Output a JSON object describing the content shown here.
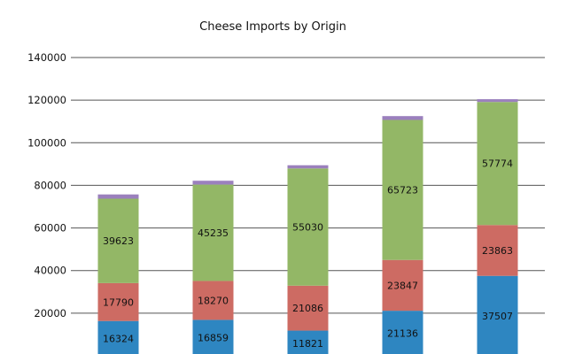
{
  "chart_data": {
    "type": "bar",
    "stacked": true,
    "title": "Cheese Imports by Origin",
    "xlabel": "",
    "ylabel": "",
    "ylim": [
      0,
      140000
    ],
    "yticks": [
      "20000",
      "40000",
      "60000",
      "80000",
      "100000",
      "120000",
      "140000"
    ],
    "grid": true,
    "categories": [
      "",
      "",
      "",
      "",
      ""
    ],
    "series": [
      {
        "color": "#2e86c1",
        "values": [
          16324,
          16859,
          11821,
          21136,
          37507
        ],
        "labels": [
          "16324",
          "16859",
          "11821",
          "21136",
          "37507"
        ]
      },
      {
        "color": "#cd6b63",
        "values": [
          17790,
          18270,
          21086,
          23847,
          23863
        ],
        "labels": [
          "17790",
          "18270",
          "21086",
          "23847",
          "23863"
        ]
      },
      {
        "color": "#93b766",
        "values": [
          39623,
          45235,
          55030,
          65723,
          57774
        ],
        "labels": [
          "39623",
          "45235",
          "55030",
          "65723",
          "57774"
        ]
      },
      {
        "color": "#9b80bd",
        "values": [
          2000,
          1800,
          1500,
          1800,
          1300
        ],
        "labels": []
      }
    ]
  }
}
